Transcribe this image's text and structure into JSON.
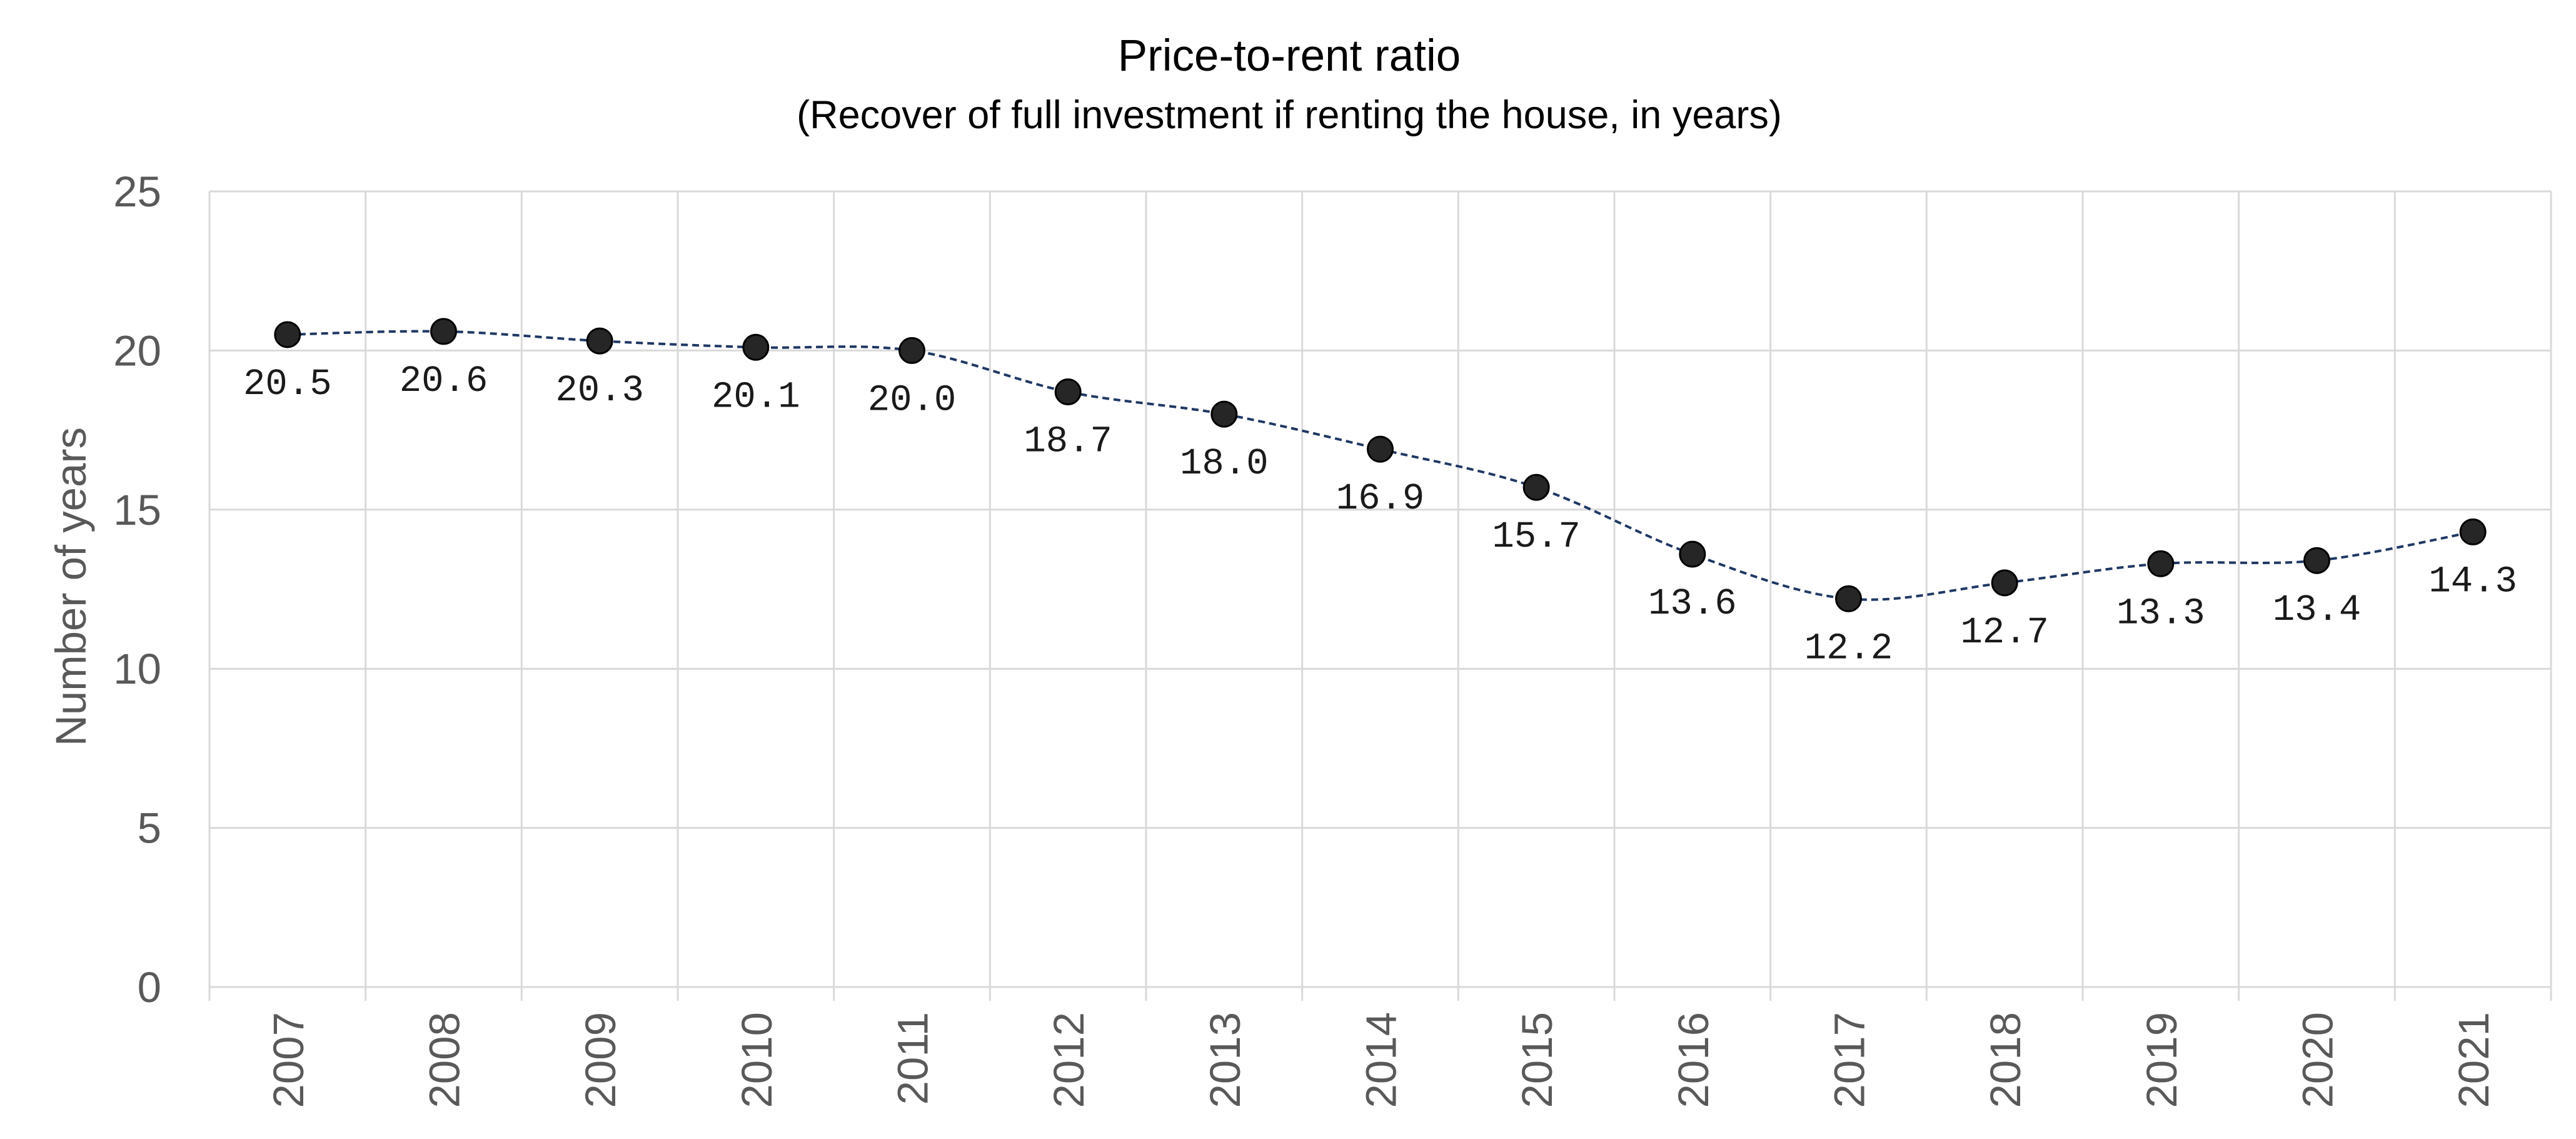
{
  "chart_data": {
    "type": "line",
    "title": "Price-to-rent ratio",
    "subtitle": "(Recover of full investment if renting the house, in years)",
    "xlabel": "",
    "ylabel": "Number of years",
    "x": [
      "2007",
      "2008",
      "2009",
      "2010",
      "2011",
      "2012",
      "2013",
      "2014",
      "2015",
      "2016",
      "2017",
      "2018",
      "2019",
      "2020",
      "2021"
    ],
    "series": [
      {
        "values": [
          20.5,
          20.6,
          20.3,
          20.1,
          20.0,
          18.7,
          18.0,
          16.9,
          15.7,
          13.6,
          12.2,
          12.7,
          13.3,
          13.4,
          14.3
        ],
        "labels": [
          "20.5",
          "20.6",
          "20.3",
          "20.1",
          "20.0",
          "18.7",
          "18.0",
          "16.9",
          "15.7",
          "13.6",
          "12.2",
          "12.7",
          "13.3",
          "13.4",
          "14.3"
        ]
      }
    ],
    "ylim": [
      0,
      25
    ],
    "yticks": [
      "0",
      "5",
      "10",
      "15",
      "20",
      "25"
    ],
    "grid": true,
    "legend": "none",
    "colors": {
      "line": "#1f3864",
      "marker": "#262626",
      "grid": "#d9d9d9",
      "tick_text": "#595959"
    }
  }
}
